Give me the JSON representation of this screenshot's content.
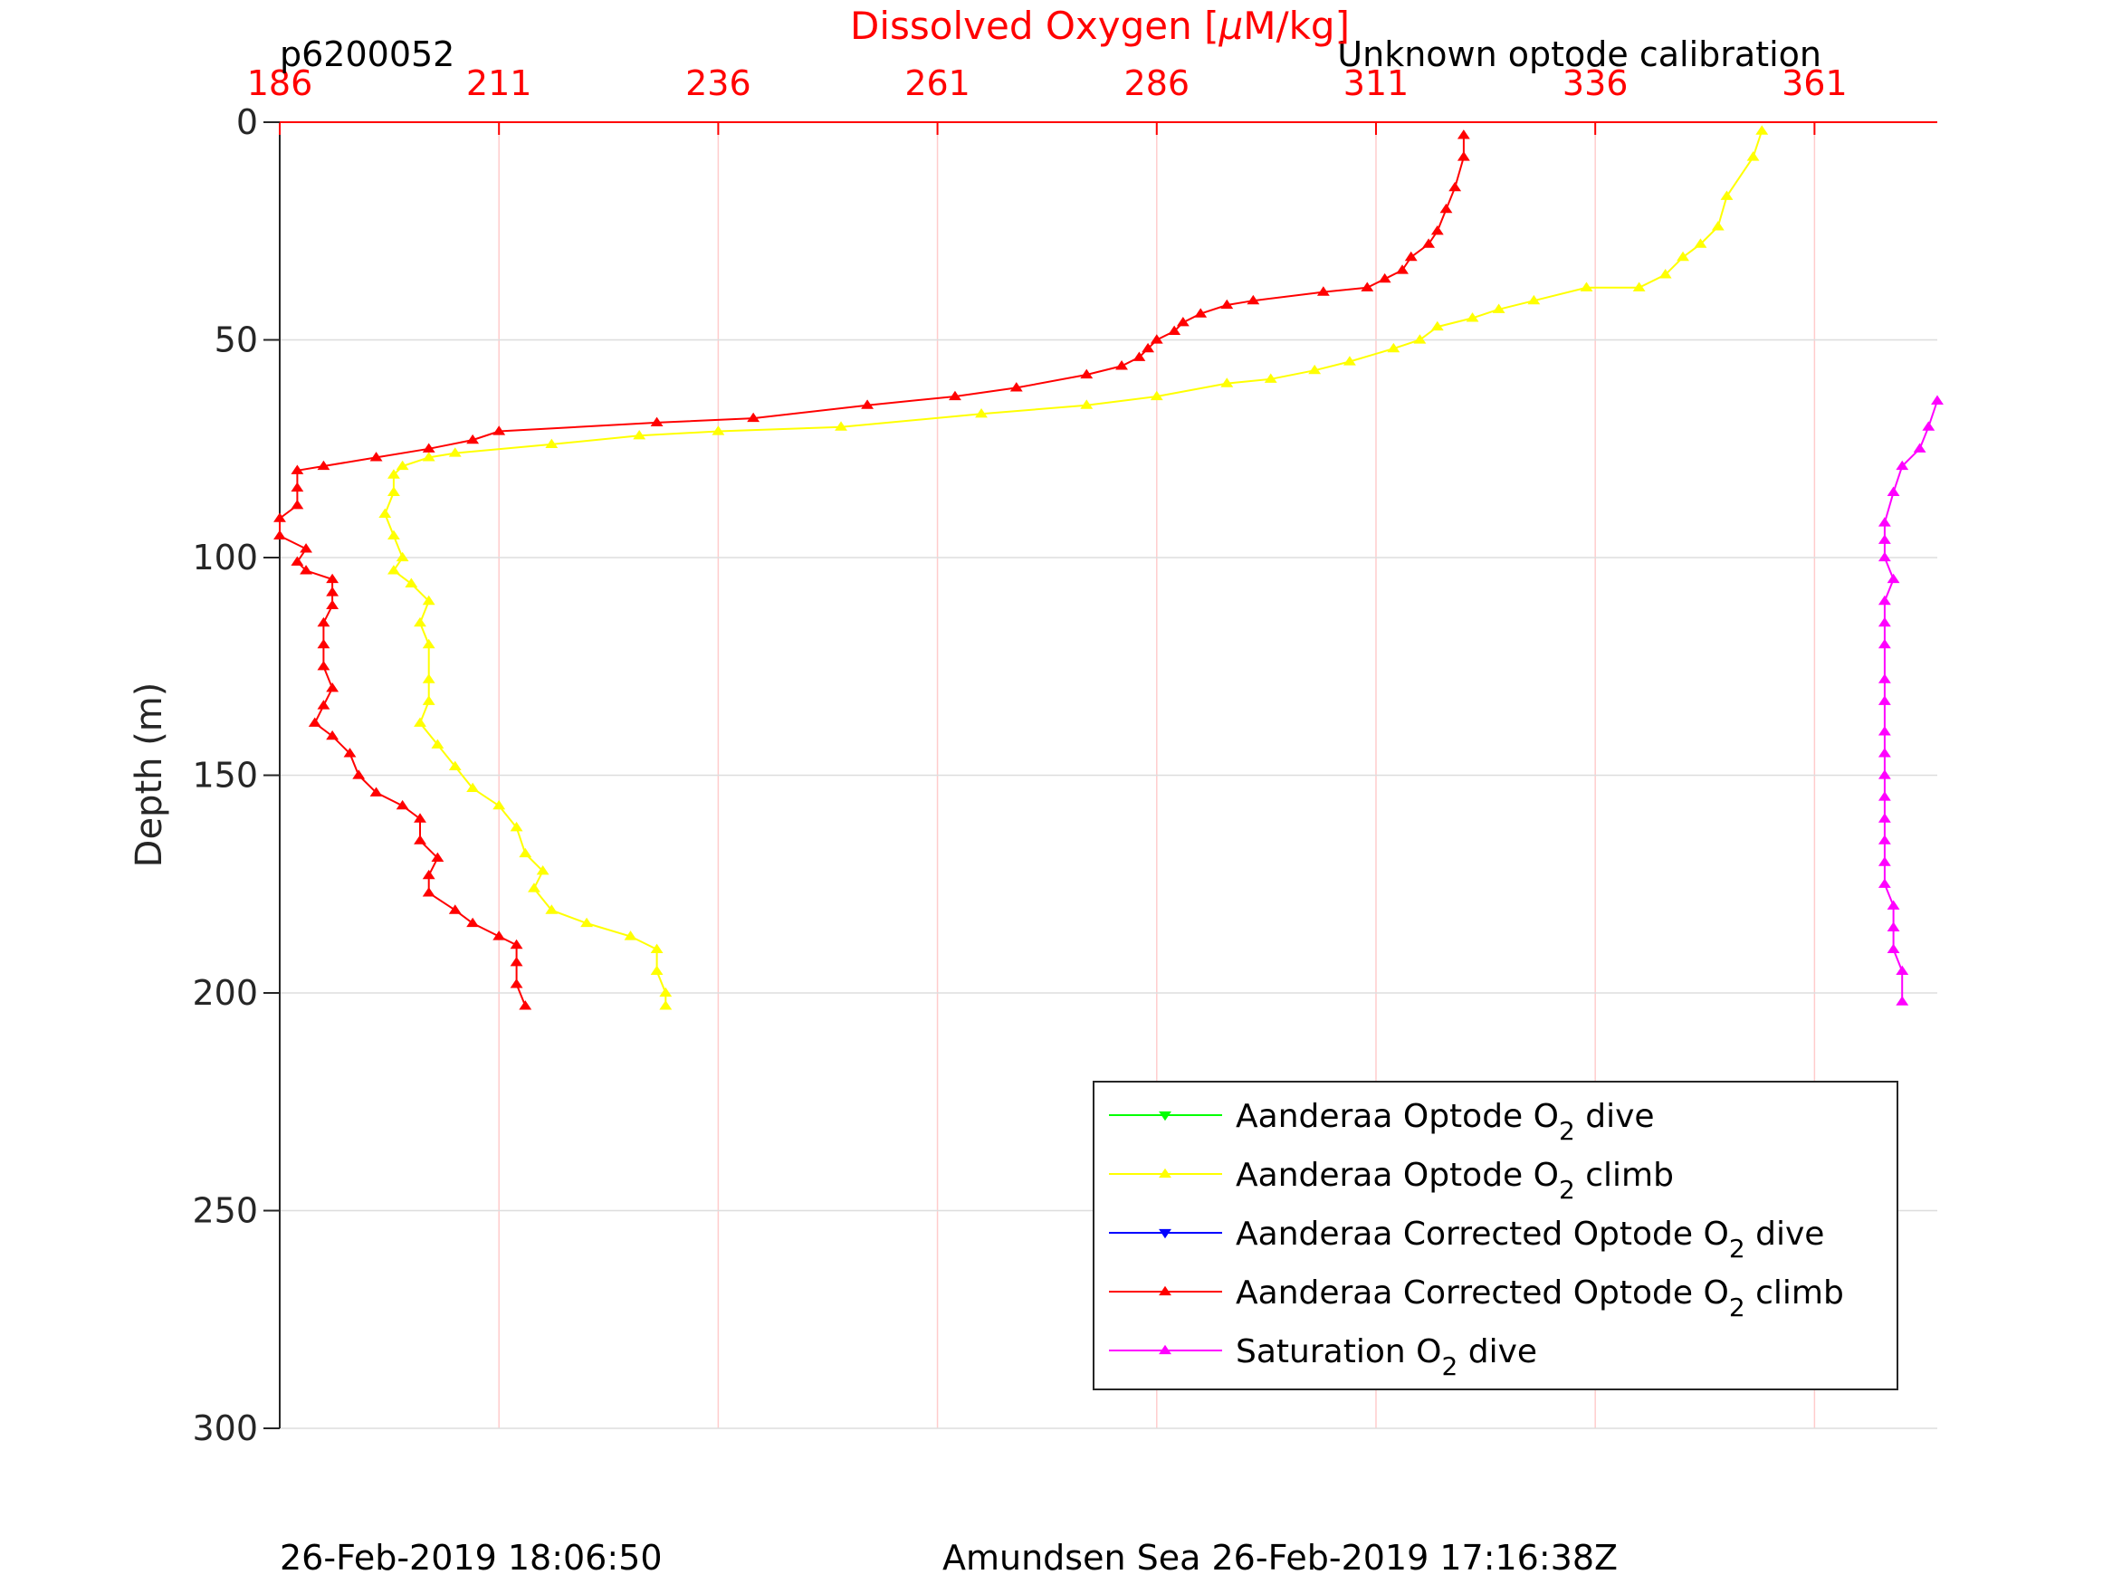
{
  "chart_data": {
    "type": "line",
    "title_left": "p6200052",
    "title_right": "Unknown optode calibration",
    "xlabel": "Dissolved Oxygen [μM/kg]",
    "xlabel_parts": [
      "Dissolved Oxygen [",
      "μ",
      "M/kg]"
    ],
    "ylabel": "Depth (m)",
    "xlim": [
      186,
      375
    ],
    "ylim": [
      0,
      300
    ],
    "y_reversed": true,
    "x_axis_position": "top",
    "xticks": [
      186,
      211,
      236,
      261,
      286,
      311,
      336,
      361
    ],
    "xtick_labels": [
      "186",
      "211",
      "236",
      "261",
      "286",
      "311",
      "336",
      "361"
    ],
    "yticks": [
      0,
      50,
      100,
      150,
      200,
      250,
      300
    ],
    "ytick_labels": [
      "0",
      "50",
      "100",
      "150",
      "200",
      "250",
      "300"
    ],
    "grid": true,
    "legend_position": "bottom-right",
    "footer_left": "26-Feb-2019 18:06:50",
    "footer_center": "Amundsen Sea 26-Feb-2019 17:16:38Z",
    "colors": {
      "axis_x": "#ff0000",
      "grid_x": "#ffcccc",
      "grid_y": "#dddddd",
      "axis": "#262626"
    },
    "legend": [
      {
        "prefix": "Aanderaa Optode O",
        "sub": "2",
        "suffix": " dive",
        "color": "#00ff00",
        "marker": "down"
      },
      {
        "prefix": "Aanderaa Optode O",
        "sub": "2",
        "suffix": " climb",
        "color": "#ffff00",
        "marker": "up"
      },
      {
        "prefix": "Aanderaa Corrected Optode O",
        "sub": "2",
        "suffix": " dive",
        "color": "#0000ff",
        "marker": "down"
      },
      {
        "prefix": "Aanderaa Corrected Optode O",
        "sub": "2",
        "suffix": " climb",
        "color": "#ff0000",
        "marker": "up"
      },
      {
        "prefix": "Saturation O",
        "sub": "2",
        "suffix": " dive",
        "color": "#ff00ff",
        "marker": "up"
      }
    ],
    "series": [
      {
        "name": "Aanderaa Optode O2 climb",
        "color": "#ffff00",
        "marker": "up",
        "points": [
          [
            355,
            2
          ],
          [
            354,
            8
          ],
          [
            351,
            17
          ],
          [
            350,
            24
          ],
          [
            348,
            28
          ],
          [
            346,
            31
          ],
          [
            344,
            35
          ],
          [
            341,
            38
          ],
          [
            335,
            38
          ],
          [
            329,
            41
          ],
          [
            325,
            43
          ],
          [
            322,
            45
          ],
          [
            318,
            47
          ],
          [
            316,
            50
          ],
          [
            313,
            52
          ],
          [
            308,
            55
          ],
          [
            304,
            57
          ],
          [
            299,
            59
          ],
          [
            294,
            60
          ],
          [
            286,
            63
          ],
          [
            278,
            65
          ],
          [
            266,
            67
          ],
          [
            250,
            70
          ],
          [
            236,
            71
          ],
          [
            227,
            72
          ],
          [
            217,
            74
          ],
          [
            206,
            76
          ],
          [
            203,
            77
          ],
          [
            200,
            79
          ],
          [
            199,
            81
          ],
          [
            199,
            85
          ],
          [
            198,
            90
          ],
          [
            199,
            95
          ],
          [
            200,
            100
          ],
          [
            199,
            103
          ],
          [
            201,
            106
          ],
          [
            203,
            110
          ],
          [
            202,
            115
          ],
          [
            203,
            120
          ],
          [
            203,
            128
          ],
          [
            203,
            133
          ],
          [
            202,
            138
          ],
          [
            204,
            143
          ],
          [
            206,
            148
          ],
          [
            208,
            153
          ],
          [
            211,
            157
          ],
          [
            213,
            162
          ],
          [
            214,
            168
          ],
          [
            216,
            172
          ],
          [
            215,
            176
          ],
          [
            217,
            181
          ],
          [
            221,
            184
          ],
          [
            226,
            187
          ],
          [
            229,
            190
          ],
          [
            229,
            195
          ],
          [
            230,
            200
          ],
          [
            230,
            203
          ]
        ]
      },
      {
        "name": "Aanderaa Corrected Optode O2 climb",
        "color": "#ff0000",
        "marker": "up",
        "points": [
          [
            321,
            3
          ],
          [
            321,
            8
          ],
          [
            320,
            15
          ],
          [
            319,
            20
          ],
          [
            318,
            25
          ],
          [
            317,
            28
          ],
          [
            315,
            31
          ],
          [
            314,
            34
          ],
          [
            312,
            36
          ],
          [
            310,
            38
          ],
          [
            305,
            39
          ],
          [
            297,
            41
          ],
          [
            294,
            42
          ],
          [
            291,
            44
          ],
          [
            289,
            46
          ],
          [
            288,
            48
          ],
          [
            286,
            50
          ],
          [
            285,
            52
          ],
          [
            284,
            54
          ],
          [
            282,
            56
          ],
          [
            278,
            58
          ],
          [
            270,
            61
          ],
          [
            263,
            63
          ],
          [
            253,
            65
          ],
          [
            240,
            68
          ],
          [
            229,
            69
          ],
          [
            211,
            71
          ],
          [
            208,
            73
          ],
          [
            203,
            75
          ],
          [
            197,
            77
          ],
          [
            191,
            79
          ],
          [
            188,
            80
          ],
          [
            188,
            84
          ],
          [
            188,
            88
          ],
          [
            186,
            91
          ],
          [
            186,
            95
          ],
          [
            189,
            98
          ],
          [
            188,
            101
          ],
          [
            189,
            103
          ],
          [
            192,
            105
          ],
          [
            192,
            108
          ],
          [
            192,
            111
          ],
          [
            191,
            115
          ],
          [
            191,
            120
          ],
          [
            191,
            125
          ],
          [
            192,
            130
          ],
          [
            191,
            134
          ],
          [
            190,
            138
          ],
          [
            192,
            141
          ],
          [
            194,
            145
          ],
          [
            195,
            150
          ],
          [
            197,
            154
          ],
          [
            200,
            157
          ],
          [
            202,
            160
          ],
          [
            202,
            165
          ],
          [
            204,
            169
          ],
          [
            203,
            173
          ],
          [
            203,
            177
          ],
          [
            206,
            181
          ],
          [
            208,
            184
          ],
          [
            211,
            187
          ],
          [
            213,
            189
          ],
          [
            213,
            193
          ],
          [
            213,
            198
          ],
          [
            214,
            203
          ]
        ]
      },
      {
        "name": "Saturation O2 dive",
        "color": "#ff00ff",
        "marker": "up",
        "points": [
          [
            375,
            64
          ],
          [
            374,
            70
          ],
          [
            373,
            75
          ],
          [
            371,
            79
          ],
          [
            370,
            85
          ],
          [
            369,
            92
          ],
          [
            369,
            96
          ],
          [
            369,
            100
          ],
          [
            370,
            105
          ],
          [
            369,
            110
          ],
          [
            369,
            115
          ],
          [
            369,
            120
          ],
          [
            369,
            128
          ],
          [
            369,
            133
          ],
          [
            369,
            140
          ],
          [
            369,
            145
          ],
          [
            369,
            150
          ],
          [
            369,
            155
          ],
          [
            369,
            160
          ],
          [
            369,
            165
          ],
          [
            369,
            170
          ],
          [
            369,
            175
          ],
          [
            370,
            180
          ],
          [
            370,
            185
          ],
          [
            370,
            190
          ],
          [
            371,
            195
          ],
          [
            371,
            202
          ]
        ]
      }
    ]
  }
}
